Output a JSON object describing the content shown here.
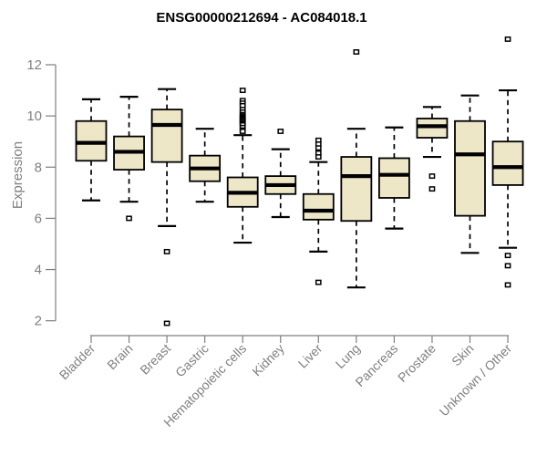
{
  "title": "ENSG00000212694 - AC084018.1",
  "colors": {
    "background": "#ffffff",
    "box_fill": "#EDE7C8",
    "box_border": "#000000",
    "median": "#000000",
    "whisker": "#000000",
    "outlier_fill": "#ffffff",
    "axis": "#7f7f7f",
    "tick_label": "#808080",
    "title_color": "#000000"
  },
  "chart_data": {
    "type": "boxplot",
    "title": "ENSG00000212694 - AC084018.1",
    "xlabel": "",
    "ylabel": "Expression",
    "ylim": [
      1.8,
      13.2
    ],
    "yticks": [
      2,
      4,
      6,
      8,
      10,
      12
    ],
    "grid": false,
    "legend": "none",
    "categories": [
      "Bladder",
      "Brain",
      "Breast",
      "Gastric",
      "Hematopoietic cells",
      "Kidney",
      "Liver",
      "Lung",
      "Pancreas",
      "Prostate",
      "Skin",
      "Unknown / Other"
    ],
    "series": [
      {
        "label": "Bladder",
        "whisker_low": 6.7,
        "q1": 8.25,
        "median": 8.95,
        "q3": 9.8,
        "whisker_high": 10.65,
        "outliers": []
      },
      {
        "label": "Brain",
        "whisker_low": 6.65,
        "q1": 7.9,
        "median": 8.6,
        "q3": 9.2,
        "whisker_high": 10.75,
        "outliers": [
          6.0
        ]
      },
      {
        "label": "Breast",
        "whisker_low": 5.7,
        "q1": 8.2,
        "median": 9.65,
        "q3": 10.25,
        "whisker_high": 11.05,
        "outliers": [
          4.7,
          1.9
        ]
      },
      {
        "label": "Gastric",
        "whisker_low": 6.65,
        "q1": 7.45,
        "median": 7.95,
        "q3": 8.45,
        "whisker_high": 9.5,
        "outliers": []
      },
      {
        "label": "Hematopoietic cells",
        "whisker_low": 5.05,
        "q1": 6.45,
        "median": 7.0,
        "q3": 7.6,
        "whisker_high": 9.25,
        "outliers": [
          11.0,
          10.6,
          10.5,
          10.4,
          10.25,
          10.15,
          10.05,
          10.0,
          9.95,
          9.9,
          9.85,
          9.8,
          9.75,
          9.7,
          9.65,
          9.55,
          9.45,
          9.4
        ]
      },
      {
        "label": "Kidney",
        "whisker_low": 6.05,
        "q1": 6.95,
        "median": 7.3,
        "q3": 7.65,
        "whisker_high": 8.7,
        "outliers": [
          9.4
        ]
      },
      {
        "label": "Liver",
        "whisker_low": 4.7,
        "q1": 5.95,
        "median": 6.3,
        "q3": 6.95,
        "whisker_high": 8.2,
        "outliers": [
          9.05,
          8.9,
          8.75,
          8.55,
          8.4,
          3.5
        ]
      },
      {
        "label": "Lung",
        "whisker_low": 3.3,
        "q1": 5.9,
        "median": 7.65,
        "q3": 8.4,
        "whisker_high": 9.5,
        "outliers": [
          12.5
        ]
      },
      {
        "label": "Pancreas",
        "whisker_low": 5.6,
        "q1": 6.8,
        "median": 7.7,
        "q3": 8.35,
        "whisker_high": 9.55,
        "outliers": []
      },
      {
        "label": "Prostate",
        "whisker_low": 8.4,
        "q1": 9.15,
        "median": 9.6,
        "q3": 9.9,
        "whisker_high": 10.35,
        "outliers": [
          7.65,
          7.15
        ]
      },
      {
        "label": "Skin",
        "whisker_low": 4.65,
        "q1": 6.1,
        "median": 8.5,
        "q3": 9.8,
        "whisker_high": 10.8,
        "outliers": []
      },
      {
        "label": "Unknown / Other",
        "whisker_low": 4.85,
        "q1": 7.3,
        "median": 8.0,
        "q3": 9.0,
        "whisker_high": 11.0,
        "outliers": [
          13.0,
          4.55,
          4.15,
          3.4
        ]
      }
    ]
  }
}
